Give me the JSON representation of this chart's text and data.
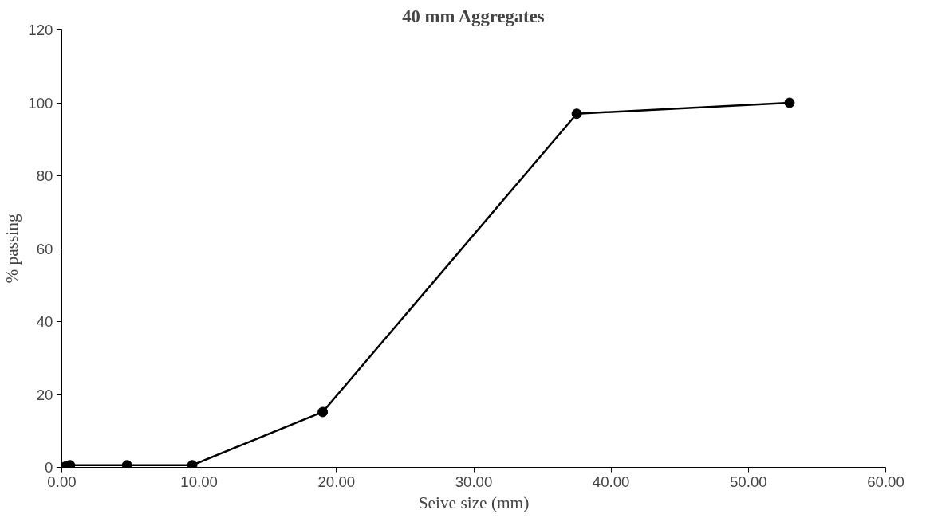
{
  "chart_data": {
    "type": "line",
    "title": "40 mm Aggregates",
    "xlabel": "Seive size (mm)",
    "ylabel": "% passing",
    "x": [
      0.075,
      0.3,
      0.6,
      4.75,
      9.5,
      19,
      37.5,
      53
    ],
    "series": [
      {
        "color": "#000000",
        "values": [
          0,
          0.3,
          0.6,
          0.6,
          0.6,
          15.2,
          97,
          100
        ]
      }
    ],
    "xlim": [
      0,
      60
    ],
    "xticks": [
      {
        "value": 0,
        "label": "0.00"
      },
      {
        "value": 10,
        "label": "10.00"
      },
      {
        "value": 20,
        "label": "20.00"
      },
      {
        "value": 30,
        "label": "30.00"
      },
      {
        "value": 40,
        "label": "40.00"
      },
      {
        "value": 50,
        "label": "50.00"
      },
      {
        "value": 60,
        "label": "60.00"
      }
    ],
    "ylim": [
      0,
      120
    ],
    "yticks": [
      0,
      20,
      40,
      60,
      80,
      100,
      120
    ],
    "grid": false,
    "marker": "circle",
    "line_style": "solid"
  }
}
